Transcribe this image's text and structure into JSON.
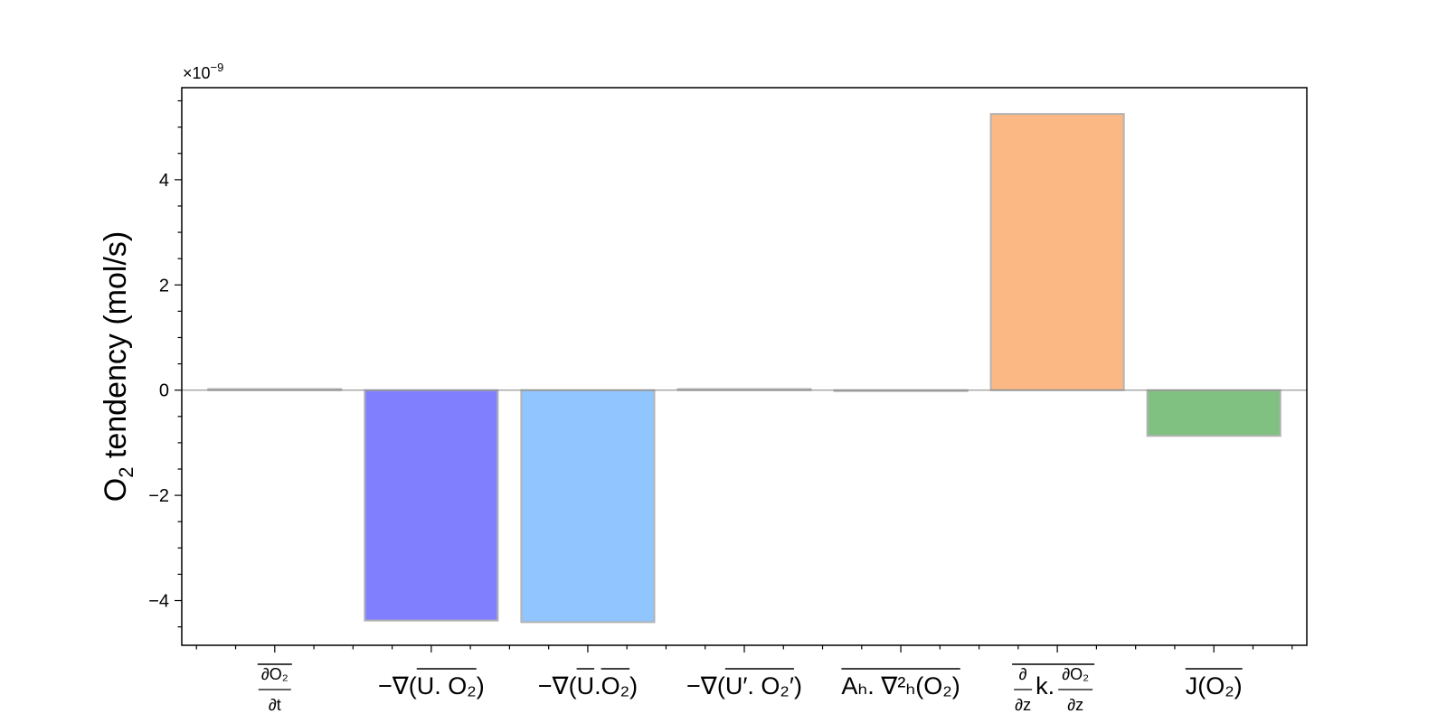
{
  "chart_data": {
    "type": "bar",
    "categories": [
      {
        "id": "dO2-dt",
        "parts": {
          "num": "∂O₂",
          "den": "∂t"
        }
      },
      {
        "id": "adv-total",
        "parts": {
          "pre": "−∇(",
          "bar": "U. O₂",
          "post": ")"
        }
      },
      {
        "id": "adv-mean",
        "parts": {
          "pre": "−∇(",
          "bar1": "U",
          "mid": ". ",
          "bar2": "O₂",
          "post": ")"
        }
      },
      {
        "id": "adv-eddy",
        "parts": {
          "pre": "−∇(",
          "bar": "U′. O₂′",
          "post": ")"
        }
      },
      {
        "id": "diff-h",
        "parts": {
          "bar": "Aₕ. ∇²ₕ(O₂)"
        }
      },
      {
        "id": "diff-v",
        "parts": {
          "d1num": "∂",
          "d1den": "∂z",
          "mid": "k.",
          "d2num": "∂O₂",
          "d2den": "∂z"
        }
      },
      {
        "id": "sources",
        "parts": {
          "bar": "J(O₂)"
        }
      }
    ],
    "values": [
      2e-11,
      -4.38e-09,
      -4.41e-09,
      2e-11,
      -1e-11,
      5.25e-09,
      -8.7e-10
    ],
    "colors": [
      "#b3b3b3",
      "#8080ff",
      "#90c5ff",
      "#b3b3b3",
      "#b3b3b3",
      "#fbb884",
      "#80c080"
    ],
    "edge_color": "#b3b3b3",
    "ylabel_main": "O",
    "ylabel_sub": "2",
    "ylabel_rest": " tendency (mol/s)",
    "ylim": [
      -4.85e-09,
      5.75e-09
    ],
    "yticks": [
      -4,
      -2,
      0,
      2,
      4
    ],
    "y_scale_label": "×10",
    "y_scale_exp": "−9",
    "zero_line": true,
    "grid": false
  }
}
